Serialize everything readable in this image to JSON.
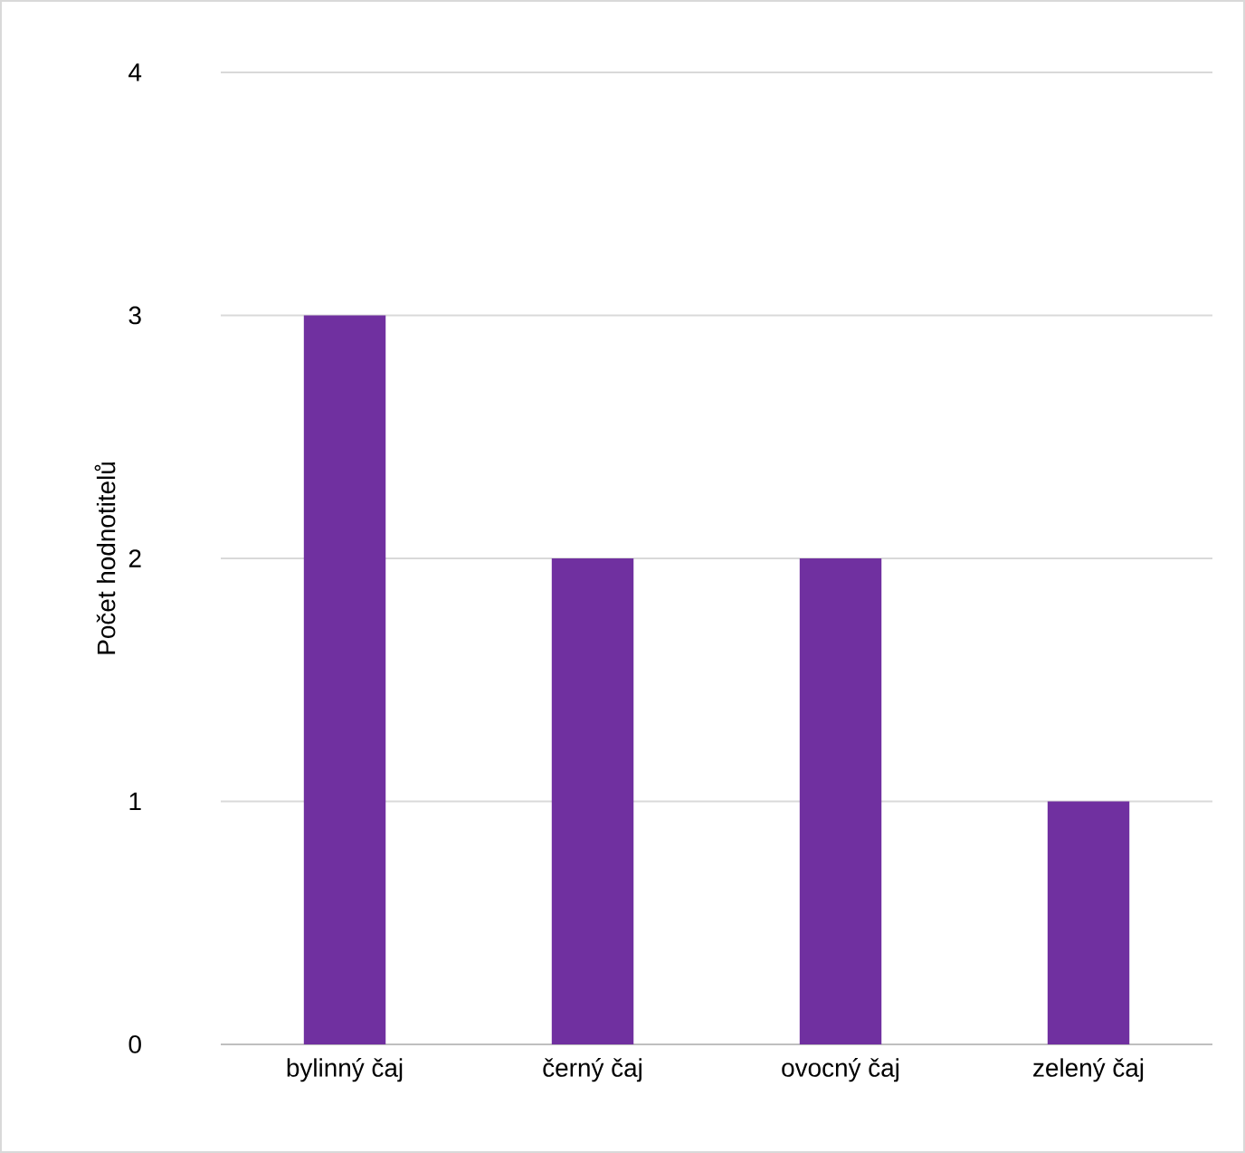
{
  "chart_data": {
    "type": "bar",
    "ylabel": "Počet hodnotitelů",
    "categories": [
      "bylinný čaj",
      "černý čaj",
      "ovocný čaj",
      "zelený čaj"
    ],
    "values": [
      3,
      2,
      2,
      1
    ],
    "color": "#7030a0",
    "ylim": [
      0,
      4
    ],
    "yticks": [
      0,
      1,
      2,
      3,
      4
    ],
    "grid": "y"
  }
}
